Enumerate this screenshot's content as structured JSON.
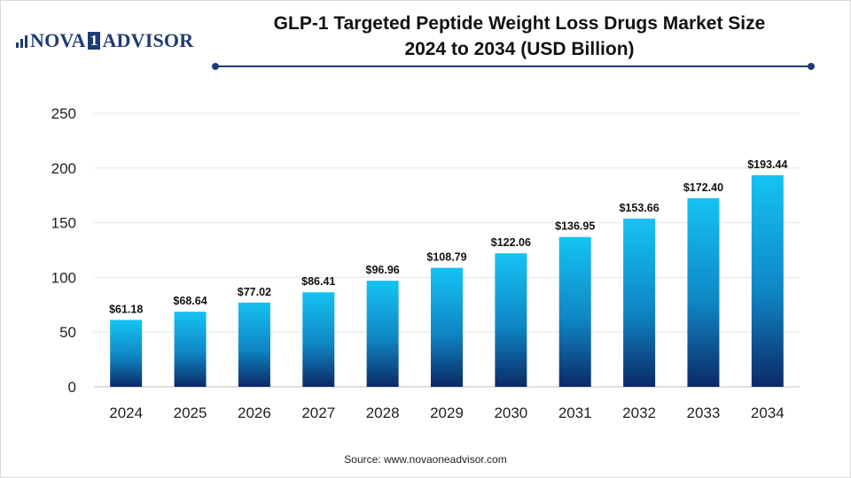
{
  "logo": {
    "part1": "NOVA",
    "box": "1",
    "part2": "ADVISOR"
  },
  "title_line1": "GLP-1 Targeted Peptide Weight Loss Drugs Market Size",
  "title_line2": "2024 to 2034 (USD Billion)",
  "source": "Source: www.novaoneadvisor.com",
  "colors": {
    "bar_top": "#15c3f3",
    "bar_bottom": "#0b2a66",
    "brand": "#1f3b73",
    "grid": "#e6e6e6"
  },
  "chart_data": {
    "type": "bar",
    "title": "GLP-1 Targeted Peptide Weight Loss Drugs Market Size 2024 to 2034 (USD Billion)",
    "xlabel": "",
    "ylabel": "",
    "categories": [
      "2024",
      "2025",
      "2026",
      "2027",
      "2028",
      "2029",
      "2030",
      "2031",
      "2032",
      "2033",
      "2034"
    ],
    "values": [
      61.18,
      68.64,
      77.02,
      86.41,
      96.96,
      108.79,
      122.06,
      136.95,
      153.66,
      172.4,
      193.44
    ],
    "value_labels": [
      "$61.18",
      "$68.64",
      "$77.02",
      "$86.41",
      "$96.96",
      "$108.79",
      "$122.06",
      "$136.95",
      "$153.66",
      "$172.40",
      "$193.44"
    ],
    "yticks": [
      0,
      50,
      100,
      150,
      200,
      250
    ],
    "ylim": [
      0,
      250
    ],
    "grid": true
  }
}
